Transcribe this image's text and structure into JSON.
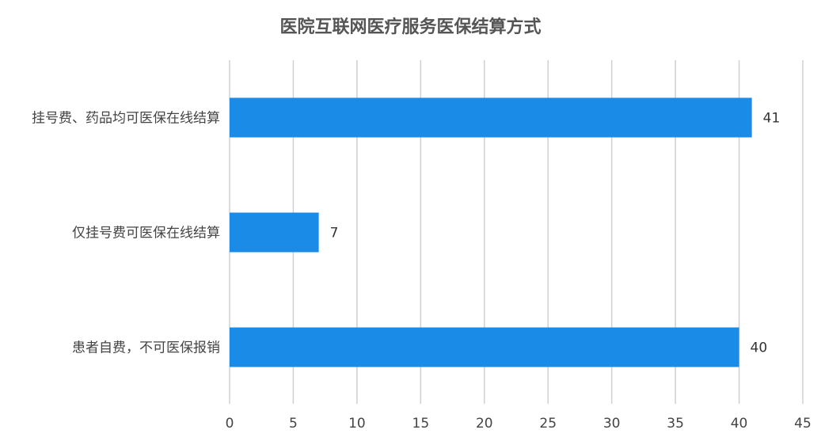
{
  "chart_data": {
    "type": "bar",
    "orientation": "horizontal",
    "title": "医院互联网医疗服务医保结算方式",
    "categories": [
      "挂号费、药品均可医保在线结算",
      "仅挂号费可医保在线结算",
      "患者自费，不可医保报销"
    ],
    "values": [
      41,
      7,
      40
    ],
    "xlim": [
      0,
      45
    ],
    "xticks": [
      0,
      5,
      10,
      15,
      20,
      25,
      30,
      35,
      40,
      45
    ],
    "xlabel": "",
    "ylabel": "",
    "grid": "vertical",
    "legend": "none",
    "bar_color": "#1b8be8",
    "show_data_labels": true
  }
}
